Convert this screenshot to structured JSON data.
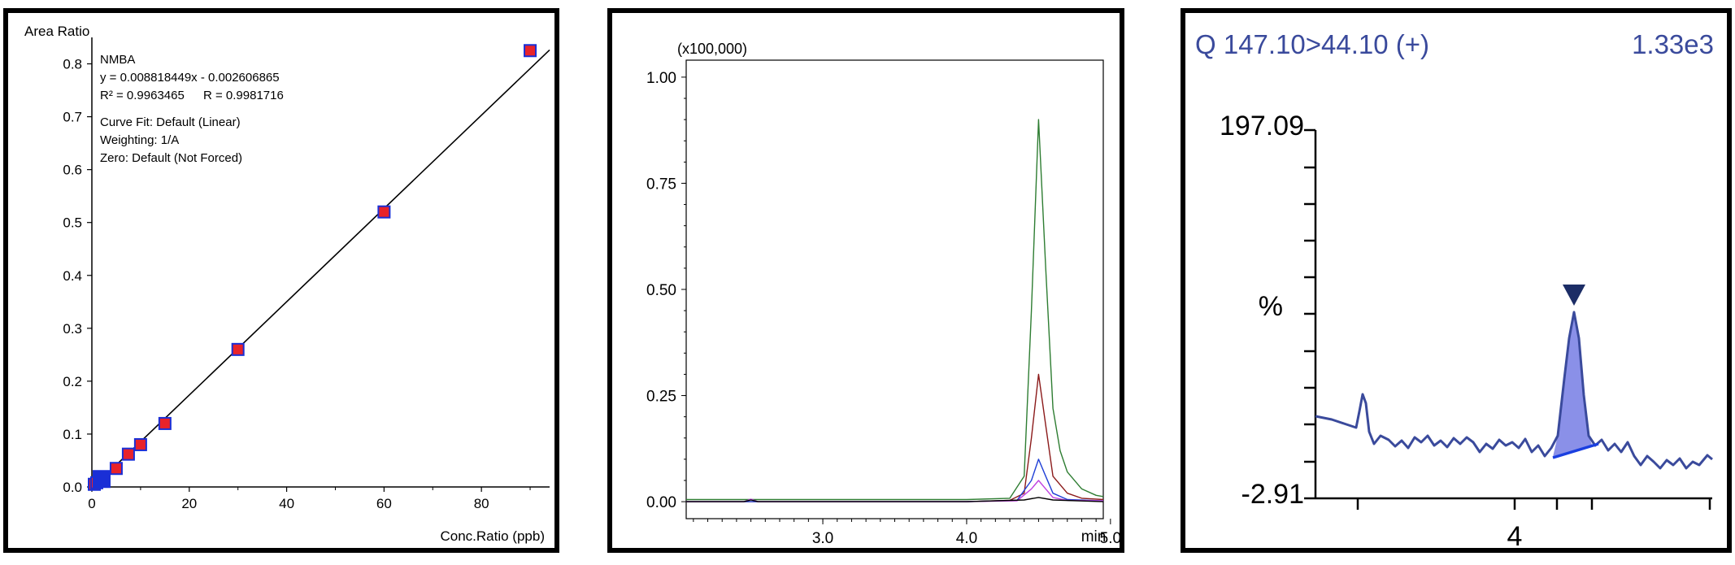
{
  "chart_data": [
    {
      "type": "scatter",
      "ylabel": "Area Ratio",
      "xlabel": "Conc.Ratio (ppb)",
      "compound": "NMBA",
      "equation": "y = 0.008818449x - 0.002606865",
      "r2": "R² = 0.9963465",
      "r": "R = 0.9981716",
      "curve_fit": "Curve Fit: Default (Linear)",
      "weighting": "Weighting: 1/A",
      "zero": "Zero: Default (Not Forced)",
      "xlim": [
        0,
        94
      ],
      "ylim": [
        0,
        0.85
      ],
      "xticks": [
        "0",
        "20",
        "40",
        "60",
        "80"
      ],
      "yticks": [
        "0.0",
        "0.1",
        "0.2",
        "0.3",
        "0.4",
        "0.5",
        "0.6",
        "0.7",
        "0.8"
      ],
      "fit": {
        "slope": 0.008818449,
        "intercept": -0.002606865
      },
      "points": [
        {
          "x": 0.5,
          "y": 0.005
        },
        {
          "x": 1.0,
          "y": 0.008
        },
        {
          "x": 2.0,
          "y": 0.015
        },
        {
          "x": 5.0,
          "y": 0.035
        },
        {
          "x": 7.5,
          "y": 0.062
        },
        {
          "x": 10,
          "y": 0.08
        },
        {
          "x": 15,
          "y": 0.12
        },
        {
          "x": 30,
          "y": 0.26
        },
        {
          "x": 60,
          "y": 0.52
        },
        {
          "x": 90,
          "y": 0.825
        }
      ],
      "point_color": "#e8232a",
      "point_edge": "#1a2fd6",
      "highlight_point": {
        "x": 2.0,
        "y": 0.015,
        "color": "#1a2fd6"
      }
    },
    {
      "type": "line",
      "scale_label": "(x100,000)",
      "xunit": "min",
      "xlim": [
        2.05,
        4.95
      ],
      "ylim": [
        -0.04,
        1.04
      ],
      "yticks": [
        "1.00",
        "0.75",
        "0.50",
        "0.25",
        "0.00"
      ],
      "xticks": [
        "3.0",
        "4.0",
        "5.0"
      ],
      "series": [
        {
          "color": "#2e7d32",
          "peak": 0.9,
          "x": [
            2.05,
            2.5,
            3.0,
            3.5,
            4.0,
            4.3,
            4.4,
            4.45,
            4.5,
            4.55,
            4.6,
            4.65,
            4.7,
            4.8,
            4.9,
            4.95
          ],
          "y": [
            0.005,
            0.005,
            0.005,
            0.005,
            0.005,
            0.008,
            0.06,
            0.45,
            0.9,
            0.55,
            0.22,
            0.12,
            0.07,
            0.03,
            0.015,
            0.012
          ]
        },
        {
          "color": "#8b1a1a",
          "peak": 0.3,
          "x": [
            2.05,
            3.0,
            4.0,
            4.3,
            4.4,
            4.45,
            4.5,
            4.55,
            4.6,
            4.7,
            4.8,
            4.95
          ],
          "y": [
            0.0,
            0.0,
            0.0,
            0.003,
            0.02,
            0.15,
            0.3,
            0.18,
            0.06,
            0.02,
            0.008,
            0.005
          ]
        },
        {
          "color": "#1f3fd6",
          "peak": 0.1,
          "x": [
            2.05,
            3.0,
            4.0,
            4.35,
            4.45,
            4.5,
            4.55,
            4.6,
            4.7,
            4.95
          ],
          "y": [
            0.0,
            0.0,
            0.0,
            0.003,
            0.05,
            0.1,
            0.06,
            0.02,
            0.005,
            0.002
          ]
        },
        {
          "color": "#c040e0",
          "peak": 0.05,
          "x": [
            2.05,
            2.45,
            2.5,
            2.55,
            3.0,
            4.0,
            4.35,
            4.45,
            4.5,
            4.55,
            4.6,
            4.7,
            4.95
          ],
          "y": [
            0.0,
            0.0,
            0.006,
            0.0,
            0.0,
            0.0,
            0.002,
            0.03,
            0.05,
            0.03,
            0.01,
            0.003,
            0.002
          ]
        },
        {
          "color": "#000000",
          "peak": 0.01,
          "x": [
            2.05,
            2.45,
            2.5,
            2.55,
            3.0,
            4.0,
            4.4,
            4.5,
            4.6,
            4.95
          ],
          "y": [
            0.0,
            0.0,
            0.004,
            0.0,
            0.0,
            0.0,
            0.004,
            0.01,
            0.004,
            0.0
          ]
        }
      ]
    },
    {
      "type": "area",
      "title": "Q 147.10>44.10 (+)",
      "intensity": "1.33e3",
      "ymax_label": "197.09",
      "ymin_label": "-2.91",
      "yunit": "%",
      "xtick_label": "4",
      "color": "#3a4a9c",
      "fill": "#8a90e8",
      "baseline_color": "#1a3fe0"
    }
  ]
}
